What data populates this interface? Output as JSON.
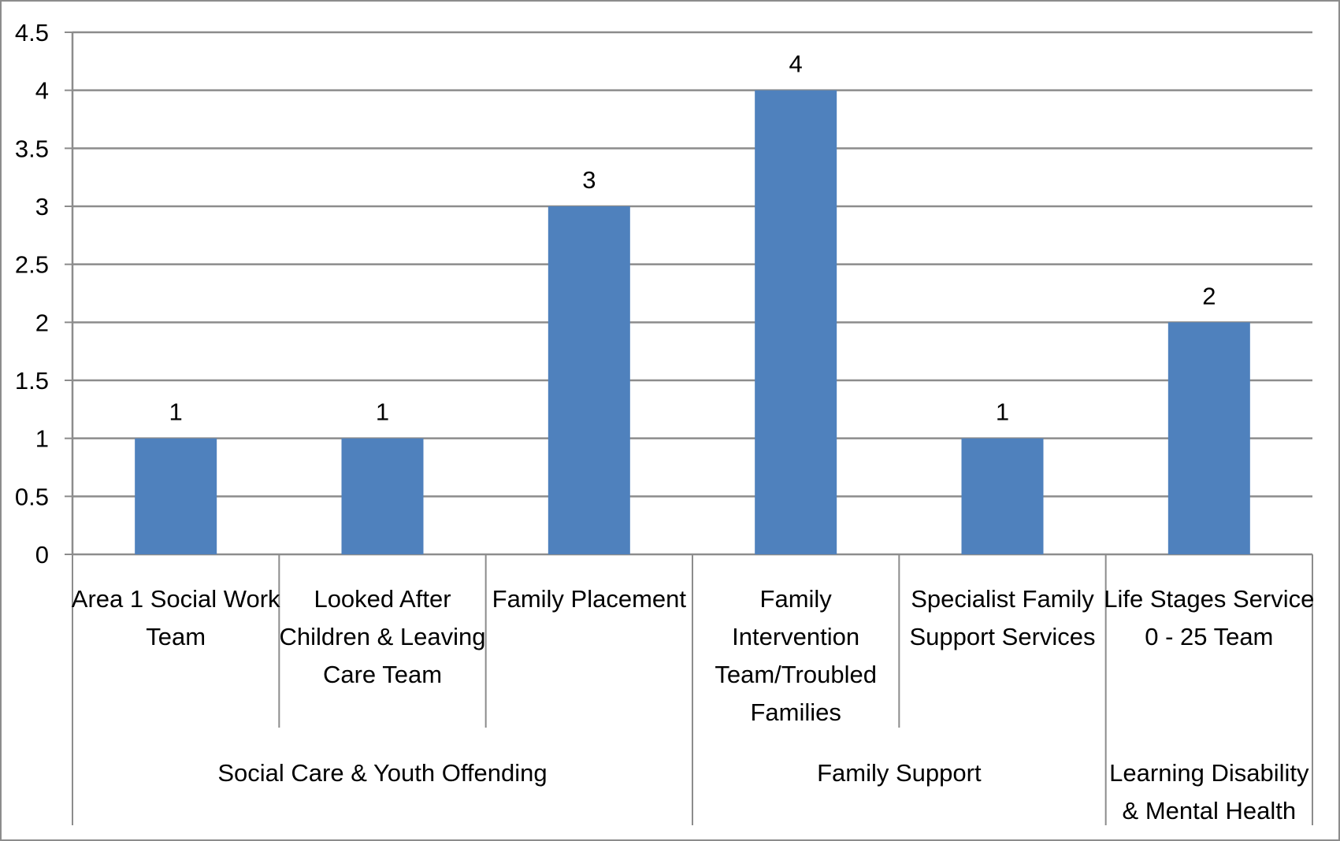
{
  "chart_data": {
    "type": "bar",
    "ylim": [
      0,
      4.5
    ],
    "ystep": 0.5,
    "grid": true,
    "yticks": [
      "0",
      "0.5",
      "1",
      "1.5",
      "2",
      "2.5",
      "3",
      "3.5",
      "4",
      "4.5"
    ],
    "categories": [
      [
        "Area 1 Social Work",
        "Team"
      ],
      [
        "Looked After",
        "Children & Leaving",
        "Care Team"
      ],
      [
        "Family Placement"
      ],
      [
        "Family",
        "Intervention",
        "Team/Troubled",
        "Families"
      ],
      [
        "Specialist Family",
        "Support Services"
      ],
      [
        "Life Stages Service",
        "0 - 25 Team"
      ]
    ],
    "values": [
      1,
      1,
      3,
      4,
      1,
      2
    ],
    "data_labels": [
      "1",
      "1",
      "3",
      "4",
      "1",
      "2"
    ],
    "groups": [
      {
        "label": [
          "Social Care & Youth Offending"
        ],
        "span": 3
      },
      {
        "label": [
          "Family Support"
        ],
        "span": 2
      },
      {
        "label": [
          "Learning Disability",
          "& Mental Health"
        ],
        "span": 1
      }
    ],
    "colors": {
      "bar": "#4F81BD",
      "grid": "#8C8C8C",
      "axis": "#8C8C8C"
    }
  }
}
